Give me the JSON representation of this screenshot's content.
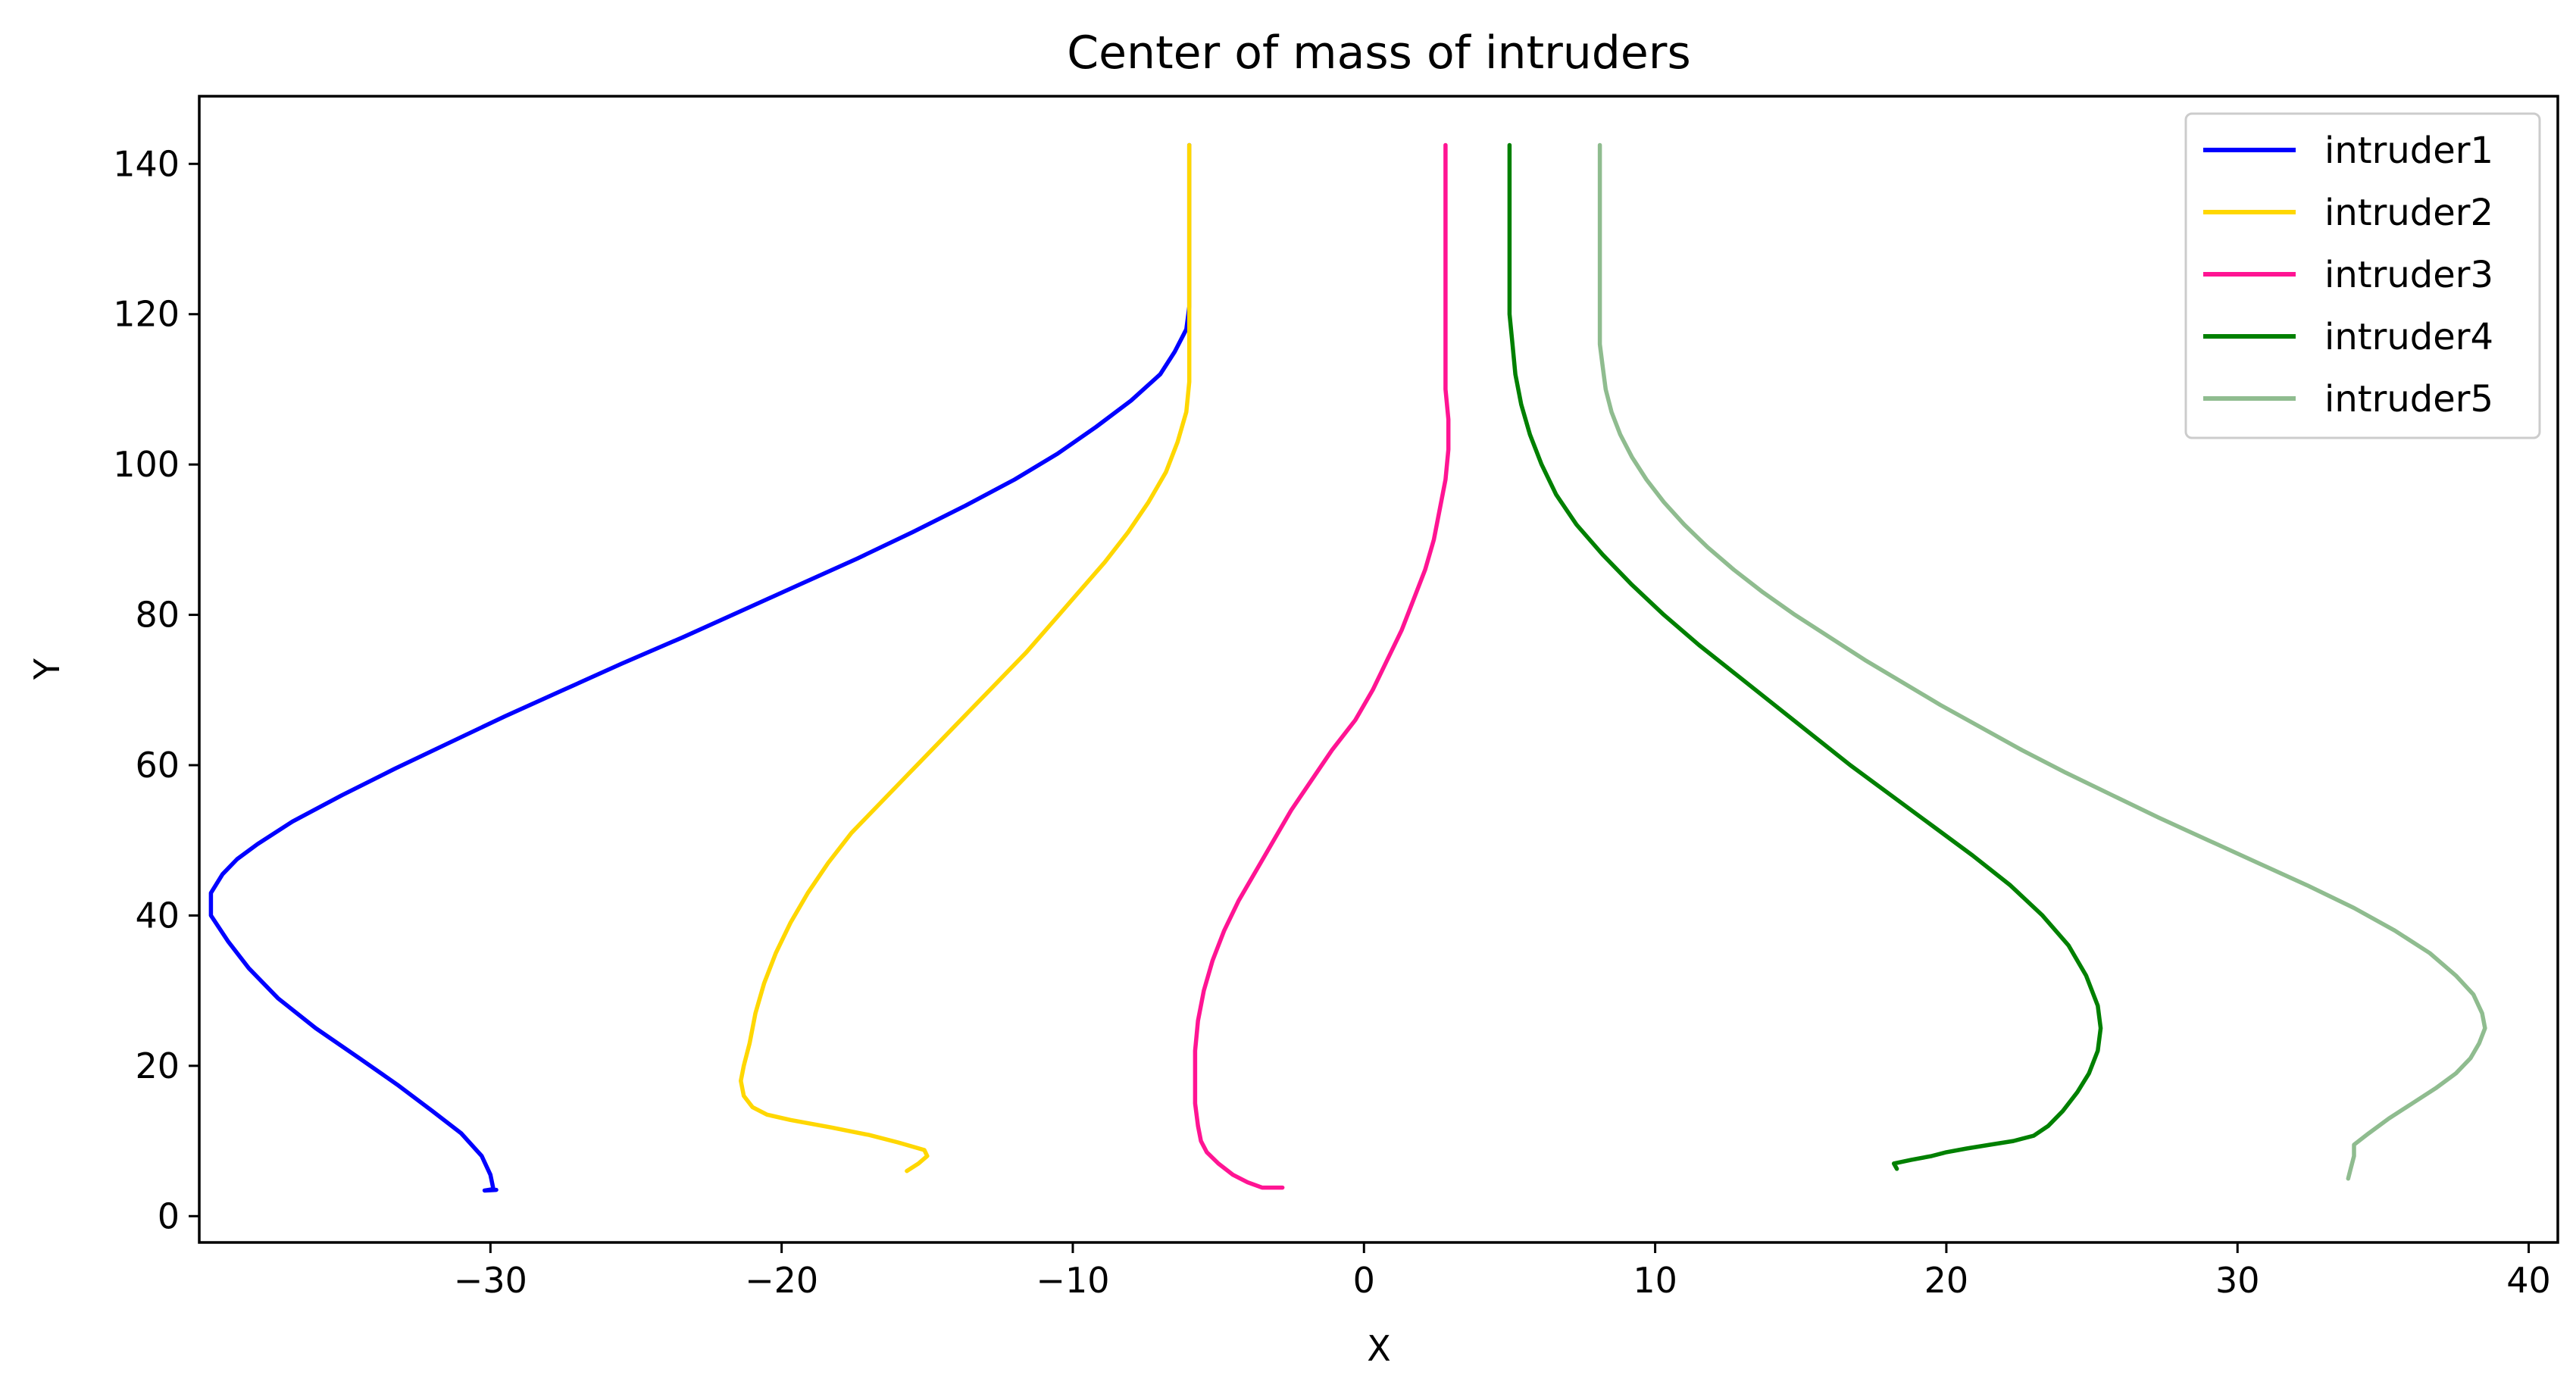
{
  "chart_data": {
    "type": "line",
    "title": "Center of mass of intruders",
    "xlabel": "X",
    "ylabel": "Y",
    "xlim": [
      -40,
      41
    ],
    "ylim": [
      -3.5,
      149
    ],
    "xticks": [
      -30,
      -20,
      -10,
      0,
      10,
      20,
      30,
      40
    ],
    "xtick_labels": [
      "−30",
      "−20",
      "−10",
      "0",
      "10",
      "20",
      "30",
      "40"
    ],
    "yticks": [
      0,
      20,
      40,
      60,
      80,
      100,
      120,
      140
    ],
    "ytick_labels": [
      "0",
      "20",
      "40",
      "60",
      "80",
      "100",
      "120",
      "140"
    ],
    "grid": false,
    "legend_position": "top-right",
    "series": [
      {
        "name": "intruder1",
        "color": "#0000ff",
        "points": [
          [
            -29.8,
            3.5
          ],
          [
            -30.2,
            3.4
          ],
          [
            -29.9,
            3.6
          ],
          [
            -30.0,
            5.5
          ],
          [
            -30.3,
            8.0
          ],
          [
            -31.0,
            11.0
          ],
          [
            -32.0,
            14.0
          ],
          [
            -33.2,
            17.5
          ],
          [
            -34.5,
            21.0
          ],
          [
            -36.0,
            25.0
          ],
          [
            -37.3,
            29.0
          ],
          [
            -38.3,
            33.0
          ],
          [
            -39.0,
            36.5
          ],
          [
            -39.6,
            40.0
          ],
          [
            -39.6,
            43.0
          ],
          [
            -39.2,
            45.5
          ],
          [
            -38.7,
            47.5
          ],
          [
            -38.0,
            49.5
          ],
          [
            -36.8,
            52.5
          ],
          [
            -35.1,
            56.0
          ],
          [
            -33.3,
            59.5
          ],
          [
            -31.4,
            63.0
          ],
          [
            -29.5,
            66.5
          ],
          [
            -27.5,
            70.0
          ],
          [
            -25.5,
            73.5
          ],
          [
            -23.4,
            77.0
          ],
          [
            -21.4,
            80.5
          ],
          [
            -19.4,
            84.0
          ],
          [
            -17.4,
            87.5
          ],
          [
            -15.5,
            91.0
          ],
          [
            -13.7,
            94.5
          ],
          [
            -12.0,
            98.0
          ],
          [
            -10.5,
            101.5
          ],
          [
            -9.2,
            105.0
          ],
          [
            -8.0,
            108.5
          ],
          [
            -7.0,
            112.0
          ],
          [
            -6.5,
            115.0
          ],
          [
            -6.1,
            118.0
          ],
          [
            -6.0,
            121.0
          ],
          [
            -6.0,
            125.0
          ],
          [
            -6.0,
            142.5
          ]
        ]
      },
      {
        "name": "intruder2",
        "color": "#ffd700",
        "points": [
          [
            -15.7,
            6.0
          ],
          [
            -15.3,
            7.0
          ],
          [
            -15.0,
            8.0
          ],
          [
            -15.1,
            8.8
          ],
          [
            -16.0,
            9.8
          ],
          [
            -17.0,
            10.8
          ],
          [
            -18.3,
            11.8
          ],
          [
            -19.7,
            12.8
          ],
          [
            -20.5,
            13.5
          ],
          [
            -21.0,
            14.5
          ],
          [
            -21.3,
            16.0
          ],
          [
            -21.4,
            18.0
          ],
          [
            -21.3,
            20.0
          ],
          [
            -21.1,
            23.0
          ],
          [
            -20.9,
            27.0
          ],
          [
            -20.6,
            31.0
          ],
          [
            -20.2,
            35.0
          ],
          [
            -19.7,
            39.0
          ],
          [
            -19.1,
            43.0
          ],
          [
            -18.4,
            47.0
          ],
          [
            -17.6,
            51.0
          ],
          [
            -16.6,
            55.0
          ],
          [
            -15.6,
            59.0
          ],
          [
            -14.6,
            63.0
          ],
          [
            -13.6,
            67.0
          ],
          [
            -12.6,
            71.0
          ],
          [
            -11.6,
            75.0
          ],
          [
            -10.7,
            79.0
          ],
          [
            -9.8,
            83.0
          ],
          [
            -8.9,
            87.0
          ],
          [
            -8.1,
            91.0
          ],
          [
            -7.4,
            95.0
          ],
          [
            -6.8,
            99.0
          ],
          [
            -6.4,
            103.0
          ],
          [
            -6.1,
            107.0
          ],
          [
            -6.0,
            111.0
          ],
          [
            -6.0,
            115.0
          ],
          [
            -6.0,
            142.5
          ]
        ]
      },
      {
        "name": "intruder3",
        "color": "#ff1493",
        "points": [
          [
            -2.8,
            3.8
          ],
          [
            -3.5,
            3.8
          ],
          [
            -4.0,
            4.5
          ],
          [
            -4.5,
            5.5
          ],
          [
            -5.0,
            7.0
          ],
          [
            -5.4,
            8.5
          ],
          [
            -5.6,
            10.0
          ],
          [
            -5.7,
            12.0
          ],
          [
            -5.8,
            15.0
          ],
          [
            -5.8,
            18.0
          ],
          [
            -5.8,
            22.0
          ],
          [
            -5.7,
            26.0
          ],
          [
            -5.5,
            30.0
          ],
          [
            -5.2,
            34.0
          ],
          [
            -4.8,
            38.0
          ],
          [
            -4.3,
            42.0
          ],
          [
            -3.7,
            46.0
          ],
          [
            -3.1,
            50.0
          ],
          [
            -2.5,
            54.0
          ],
          [
            -1.8,
            58.0
          ],
          [
            -1.1,
            62.0
          ],
          [
            -0.3,
            66.0
          ],
          [
            0.3,
            70.0
          ],
          [
            0.8,
            74.0
          ],
          [
            1.3,
            78.0
          ],
          [
            1.7,
            82.0
          ],
          [
            2.1,
            86.0
          ],
          [
            2.4,
            90.0
          ],
          [
            2.6,
            94.0
          ],
          [
            2.8,
            98.0
          ],
          [
            2.9,
            102.0
          ],
          [
            2.9,
            106.0
          ],
          [
            2.8,
            110.0
          ],
          [
            2.8,
            114.0
          ],
          [
            2.8,
            118.0
          ],
          [
            2.8,
            142.5
          ]
        ]
      },
      {
        "name": "intruder4",
        "color": "#008000",
        "points": [
          [
            18.3,
            6.3
          ],
          [
            18.2,
            7.0
          ],
          [
            18.8,
            7.5
          ],
          [
            19.5,
            8.0
          ],
          [
            20.0,
            8.5
          ],
          [
            20.7,
            9.0
          ],
          [
            21.5,
            9.5
          ],
          [
            22.3,
            10.0
          ],
          [
            23.0,
            10.7
          ],
          [
            23.5,
            12.0
          ],
          [
            24.0,
            14.0
          ],
          [
            24.5,
            16.5
          ],
          [
            24.9,
            19.0
          ],
          [
            25.2,
            22.0
          ],
          [
            25.3,
            25.0
          ],
          [
            25.2,
            28.0
          ],
          [
            24.8,
            32.0
          ],
          [
            24.2,
            36.0
          ],
          [
            23.3,
            40.0
          ],
          [
            22.2,
            44.0
          ],
          [
            20.9,
            48.0
          ],
          [
            19.5,
            52.0
          ],
          [
            18.1,
            56.0
          ],
          [
            16.7,
            60.0
          ],
          [
            15.4,
            64.0
          ],
          [
            14.1,
            68.0
          ],
          [
            12.8,
            72.0
          ],
          [
            11.5,
            76.0
          ],
          [
            10.3,
            80.0
          ],
          [
            9.2,
            84.0
          ],
          [
            8.2,
            88.0
          ],
          [
            7.3,
            92.0
          ],
          [
            6.6,
            96.0
          ],
          [
            6.1,
            100.0
          ],
          [
            5.7,
            104.0
          ],
          [
            5.4,
            108.0
          ],
          [
            5.2,
            112.0
          ],
          [
            5.1,
            116.0
          ],
          [
            5.0,
            120.0
          ],
          [
            5.0,
            142.5
          ]
        ]
      },
      {
        "name": "intruder5",
        "color": "#8fbc8f",
        "points": [
          [
            33.8,
            5.0
          ],
          [
            33.9,
            6.5
          ],
          [
            34.0,
            8.0
          ],
          [
            34.0,
            9.5
          ],
          [
            34.5,
            11.0
          ],
          [
            35.2,
            13.0
          ],
          [
            36.0,
            15.0
          ],
          [
            36.8,
            17.0
          ],
          [
            37.5,
            19.0
          ],
          [
            38.0,
            21.0
          ],
          [
            38.3,
            23.0
          ],
          [
            38.5,
            25.0
          ],
          [
            38.4,
            27.0
          ],
          [
            38.1,
            29.5
          ],
          [
            37.5,
            32.0
          ],
          [
            36.6,
            35.0
          ],
          [
            35.4,
            38.0
          ],
          [
            34.0,
            41.0
          ],
          [
            32.4,
            44.0
          ],
          [
            30.7,
            47.0
          ],
          [
            29.0,
            50.0
          ],
          [
            27.3,
            53.0
          ],
          [
            25.7,
            56.0
          ],
          [
            24.1,
            59.0
          ],
          [
            22.6,
            62.0
          ],
          [
            21.2,
            65.0
          ],
          [
            19.8,
            68.0
          ],
          [
            18.5,
            71.0
          ],
          [
            17.2,
            74.0
          ],
          [
            16.0,
            77.0
          ],
          [
            14.8,
            80.0
          ],
          [
            13.7,
            83.0
          ],
          [
            12.7,
            86.0
          ],
          [
            11.8,
            89.0
          ],
          [
            11.0,
            92.0
          ],
          [
            10.3,
            95.0
          ],
          [
            9.7,
            98.0
          ],
          [
            9.2,
            101.0
          ],
          [
            8.8,
            104.0
          ],
          [
            8.5,
            107.0
          ],
          [
            8.3,
            110.0
          ],
          [
            8.2,
            113.0
          ],
          [
            8.1,
            116.0
          ],
          [
            8.1,
            142.5
          ]
        ]
      }
    ]
  }
}
